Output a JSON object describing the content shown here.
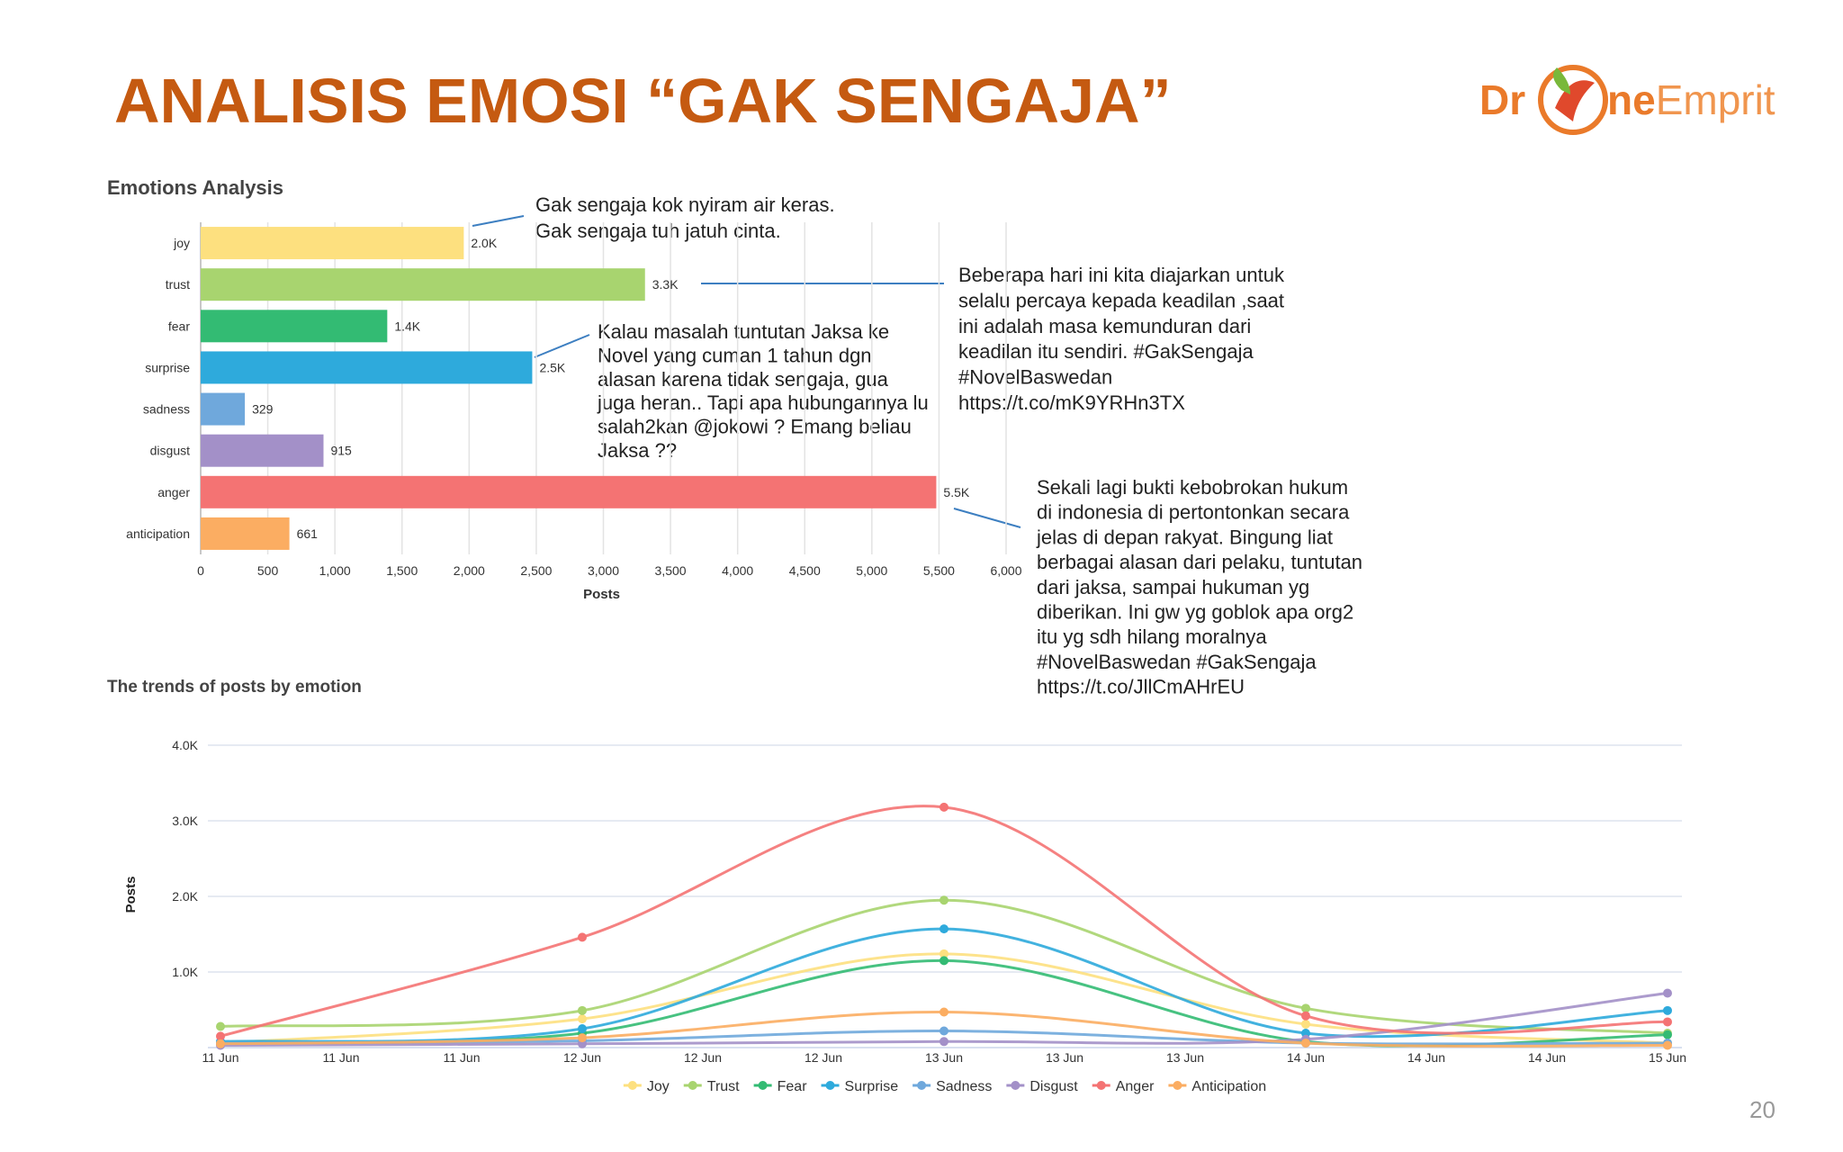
{
  "title": "ANALISIS EMOSI “GAK SENGAJA”",
  "logo": {
    "parts": [
      "Dr",
      "ne",
      "Emprit"
    ]
  },
  "page_number": "20",
  "annotations": [
    {
      "lines": [
        "Gak sengaja kok nyiram air keras.",
        "Gak sengaja tuh jatuh cinta."
      ]
    },
    {
      "lines": [
        "Beberapa hari ini kita diajarkan untuk",
        "selalu percaya kepada keadilan ,saat",
        "ini adalah masa kemunduran dari",
        "keadilan itu sendiri. #GakSengaja",
        "#NovelBaswedan",
        "https://t.co/mK9YRHn3TX"
      ]
    },
    {
      "lines": [
        "Kalau masalah tuntutan Jaksa ke",
        "Novel yang cuman 1 tahun dgn",
        "alasan karena tidak sengaja, gua",
        "juga heran.. Tapi apa hubungannya lu",
        "salah2kan @jokowi ? Emang beliau",
        "Jaksa ??"
      ]
    },
    {
      "lines": [
        "Sekali lagi bukti kebobrokan hukum",
        "di indonesia di pertontonkan secara",
        "jelas di depan rakyat. Bingung liat",
        "berbagai alasan dari pelaku, tuntutan",
        "dari jaksa, sampai hukuman yg",
        "diberikan. Ini gw yg goblok apa org2",
        "itu yg sdh hilang moralnya",
        "#NovelBaswedan #GakSengaja",
        "https://t.co/JllCmAHrEU"
      ]
    }
  ],
  "chart_data": [
    {
      "type": "bar",
      "orientation": "horizontal",
      "title": "Emotions Analysis",
      "categories": [
        "joy",
        "trust",
        "fear",
        "surprise",
        "sadness",
        "disgust",
        "anger",
        "anticipation"
      ],
      "values": [
        1960,
        3310,
        1390,
        2470,
        329,
        915,
        5480,
        661
      ],
      "value_labels": [
        "2.0K",
        "3.3K",
        "1.4K",
        "2.5K",
        "329",
        "915",
        "5.5K",
        "661"
      ],
      "colors": [
        "#fde07f",
        "#a8d46f",
        "#33bb73",
        "#2eaadc",
        "#6fa8dc",
        "#a390c8",
        "#f47373",
        "#fbad62"
      ],
      "xlim": [
        0,
        6000
      ],
      "xticks": [
        0,
        500,
        {
          "value": 1000,
          "label": "1,000"
        },
        {
          "value": 1500,
          "label": "1,500"
        },
        {
          "value": 2000,
          "label": "2,000"
        },
        {
          "value": 2500,
          "label": "2,500"
        },
        {
          "value": 3000,
          "label": "3,000"
        },
        {
          "value": 3500,
          "label": "3,500"
        },
        {
          "value": 4000,
          "label": "4,000"
        },
        {
          "value": 4500,
          "label": "4,500"
        },
        {
          "value": 5000,
          "label": "5,000"
        },
        {
          "value": 5500,
          "label": "5,500"
        },
        {
          "value": 6000,
          "label": "6,000"
        }
      ],
      "xlabel": "Posts",
      "grid": true
    },
    {
      "type": "line",
      "title": "The trends of posts by emotion",
      "categories": [
        "11 Jun",
        "12 Jun",
        "13 Jun",
        "14 Jun",
        "15 Jun"
      ],
      "xtick_labels": [
        "11 Jun",
        "11 Jun",
        "11 Jun",
        "12 Jun",
        "12 Jun",
        "12 Jun",
        "13 Jun",
        "13 Jun",
        "13 Jun",
        "14 Jun",
        "14 Jun",
        "14 Jun",
        "15 Jun"
      ],
      "ylim": [
        0,
        4000
      ],
      "yticks": [
        {
          "value": 1000,
          "label": "1.0K"
        },
        {
          "value": 2000,
          "label": "2.0K"
        },
        {
          "value": 3000,
          "label": "3.0K"
        },
        {
          "value": 4000,
          "label": "4.0K"
        }
      ],
      "ylabel": "Posts",
      "grid": true,
      "legend": "bottom",
      "series": [
        {
          "name": "Joy",
          "color": "#fde07f",
          "values": [
            60,
            380,
            1240,
            310,
            60
          ]
        },
        {
          "name": "Trust",
          "color": "#a8d46f",
          "values": [
            280,
            490,
            1950,
            520,
            190
          ]
        },
        {
          "name": "Fear",
          "color": "#33bb73",
          "values": [
            60,
            190,
            1150,
            80,
            170
          ]
        },
        {
          "name": "Surprise",
          "color": "#2eaadc",
          "values": [
            80,
            250,
            1570,
            190,
            490
          ]
        },
        {
          "name": "Sadness",
          "color": "#6fa8dc",
          "values": [
            60,
            90,
            220,
            60,
            60
          ]
        },
        {
          "name": "Disgust",
          "color": "#a390c8",
          "values": [
            30,
            50,
            80,
            110,
            720
          ]
        },
        {
          "name": "Anger",
          "color": "#f47373",
          "values": [
            150,
            1460,
            3180,
            420,
            340
          ]
        },
        {
          "name": "Anticipation",
          "color": "#fbad62",
          "values": [
            50,
            130,
            470,
            60,
            30
          ]
        }
      ]
    }
  ]
}
